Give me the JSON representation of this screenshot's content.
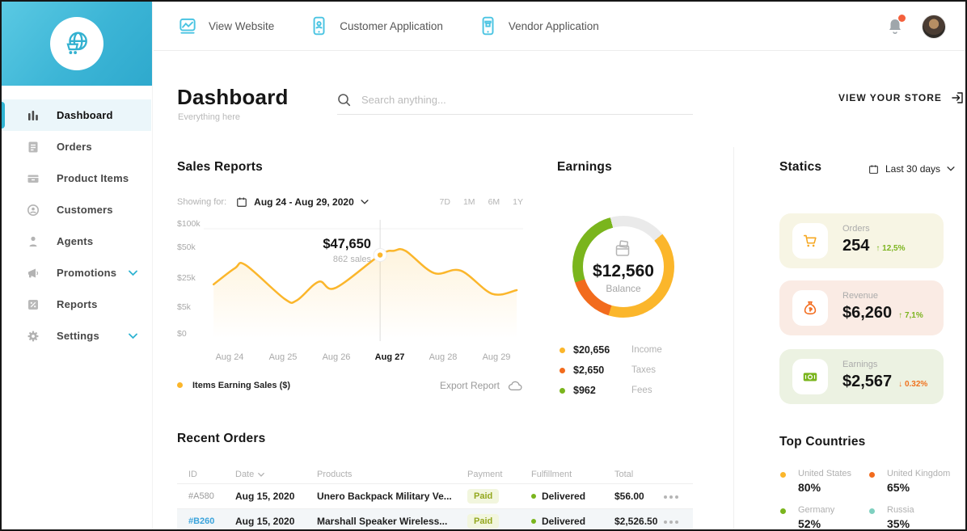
{
  "colors": {
    "accent_cyan": "#3FBBDA",
    "icon_cyan": "#4AC4E2",
    "yellow": "#FBB62B",
    "orange": "#F26B1D",
    "green": "#7AB51D",
    "teal": "#7FD0C0",
    "delta_up_green": "#7CB41F",
    "delta_down_orange": "#F0731F",
    "paid_bg": "#F2F6DE",
    "paid_text": "#93A71D",
    "link_blue": "#3AA3DB",
    "donut_gray": "#EAEAEA"
  },
  "topbar": {
    "links": [
      {
        "label": "View Website",
        "icon": "website-icon"
      },
      {
        "label": "Customer Application",
        "icon": "customer-app-icon"
      },
      {
        "label": "Vendor Application",
        "icon": "vendor-app-icon"
      }
    ],
    "has_notification": true
  },
  "sidebar": {
    "items": [
      {
        "label": "Dashboard",
        "icon": "bar-chart-icon",
        "active": true
      },
      {
        "label": "Orders",
        "icon": "orders-icon"
      },
      {
        "label": "Product Items",
        "icon": "product-items-icon"
      },
      {
        "label": "Customers",
        "icon": "customers-icon"
      },
      {
        "label": "Agents",
        "icon": "agents-icon"
      },
      {
        "label": "Promotions",
        "icon": "megaphone-icon",
        "expandable": true
      },
      {
        "label": "Reports",
        "icon": "reports-icon"
      },
      {
        "label": "Settings",
        "icon": "gear-icon",
        "expandable": true
      }
    ]
  },
  "header": {
    "title": "Dashboard",
    "subtitle": "Everything here",
    "search_placeholder": "Search anything...",
    "store_button": "VIEW YOUR STORE"
  },
  "sales": {
    "title": "Sales Reports",
    "showing_for": "Showing for:",
    "date_range": "Aug 24 - Aug 29, 2020",
    "ranges": [
      "7D",
      "1M",
      "6M",
      "1Y"
    ],
    "export_label": "Export Report"
  },
  "earnings": {
    "title": "Earnings"
  },
  "statics": {
    "title": "Statics",
    "period": "Last 30 days",
    "cards": [
      {
        "label": "Orders",
        "value": "254",
        "delta": "↑ 12,5%",
        "delta_color": "#7CB41F",
        "bg": "#F7F5E4",
        "icon": "cart-icon"
      },
      {
        "label": "Revenue",
        "value": "$6,260",
        "delta": "↑ 7,1%",
        "delta_color": "#7CB41F",
        "bg": "#FAEBE4",
        "icon": "money-bag-icon"
      },
      {
        "label": "Earnings",
        "value": "$2,567",
        "delta": "↓ 0.32%",
        "delta_color": "#F0731F",
        "bg": "#ECF2E2",
        "icon": "banknote-icon"
      }
    ]
  },
  "top_countries": {
    "title": "Top Countries",
    "items": [
      {
        "name": "United States",
        "pct": "80%",
        "color": "#FBB62B"
      },
      {
        "name": "United Kingdom",
        "pct": "65%",
        "color": "#F26B1D"
      },
      {
        "name": "Germany",
        "pct": "52%",
        "color": "#7AB51D"
      },
      {
        "name": "Russia",
        "pct": "35%",
        "color": "#7FD0C0"
      }
    ]
  },
  "orders": {
    "title": "Recent Orders",
    "headers": [
      "ID",
      "Date",
      "Products",
      "Payment",
      "Fulfillment",
      "Total"
    ],
    "rows": [
      {
        "id": "#A580",
        "date": "Aug 15, 2020",
        "product": "Unero Backpack Military Ve...",
        "payment": "Paid",
        "fulfillment": "Delivered",
        "total": "$56.00",
        "highlighted": false
      },
      {
        "id": "#B260",
        "date": "Aug 15, 2020",
        "product": "Marshall Speaker Wireless...",
        "payment": "Paid",
        "fulfillment": "Delivered",
        "total": "$2,526.50",
        "highlighted": true
      }
    ]
  },
  "chart_data": [
    {
      "type": "line",
      "title": "Sales Reports",
      "series": [
        {
          "name": "Items Earning Sales ($)",
          "color": "#FBB62B",
          "points": [
            [
              -0.3,
              24
            ],
            [
              0.1,
              37
            ],
            [
              0.3,
              39.5
            ],
            [
              1.03,
              14
            ],
            [
              1.26,
              13
            ],
            [
              1.67,
              26
            ],
            [
              1.98,
              21.5
            ],
            [
              2.82,
              47.65
            ],
            [
              3.08,
              53
            ],
            [
              3.3,
              52.5
            ],
            [
              3.83,
              33
            ],
            [
              4.33,
              35
            ],
            [
              4.92,
              17.5
            ],
            [
              5.38,
              20
            ]
          ]
        }
      ],
      "x_labels": [
        "Aug 24",
        "Aug 25",
        "Aug 26",
        "Aug 27",
        "Aug 28",
        "Aug 29"
      ],
      "highlight_label_index": 3,
      "yticks": [
        {
          "label": "$100k",
          "value": 100
        },
        {
          "label": "$50k",
          "value": 50
        },
        {
          "label": "$25k",
          "value": 25
        },
        {
          "label": "$5k",
          "value": 5
        },
        {
          "label": "$0",
          "value": 0
        }
      ],
      "y_unit": "thousand $",
      "highlight": {
        "x": 2.82,
        "y": 47.65,
        "value_label": "$47,650",
        "sub_label": "862 sales"
      }
    },
    {
      "type": "donut",
      "title": "Earnings",
      "center_value": "$12,560",
      "center_label": "Balance",
      "segments": [
        {
          "label": "",
          "color": "#EAEAEA",
          "from_deg": 0,
          "to_deg": 50
        },
        {
          "label": "Income",
          "color": "#FBB62B",
          "from_deg": 50,
          "to_deg": 197
        },
        {
          "label": "Taxes",
          "color": "#F26B1D",
          "from_deg": 197,
          "to_deg": 252
        },
        {
          "label": "Fees",
          "color": "#7AB51D",
          "from_deg": 252,
          "to_deg": 345
        },
        {
          "label": "",
          "color": "#EAEAEA",
          "from_deg": 345,
          "to_deg": 360
        }
      ],
      "legend": [
        {
          "value": "$20,656",
          "label": "Income",
          "color": "#FBB62B"
        },
        {
          "value": "$2,650",
          "label": "Taxes",
          "color": "#F26B1D"
        },
        {
          "value": "$962",
          "label": "Fees",
          "color": "#7AB51D"
        }
      ]
    }
  ]
}
